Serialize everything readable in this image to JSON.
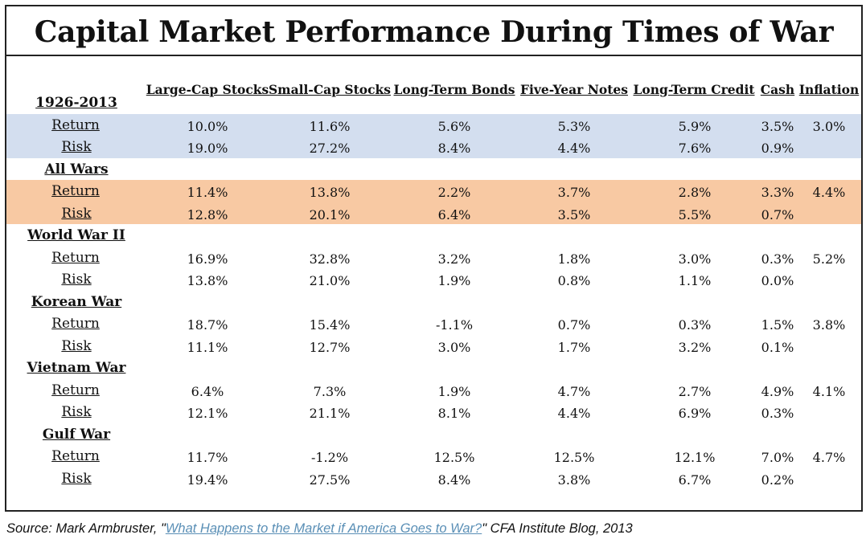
{
  "title": "Capital Market Performance During Times of War",
  "columns": [
    "Large-Cap Stocks",
    "Small-Cap Stocks",
    "Long-Term Bonds",
    "Five-Year Notes",
    "Long-Term Credit",
    "Cash",
    "Inflation"
  ],
  "colors": {
    "band_1926": "#d3deef",
    "band_allwars": "#f8c9a3",
    "link": "#5a8fb6"
  },
  "sections": [
    {
      "name": "1926-2013",
      "highlight": "band_1926",
      "rows": [
        {
          "label": "Return",
          "values": [
            "10.0%",
            "11.6%",
            "5.6%",
            "5.3%",
            "5.9%",
            "3.5%",
            "3.0%"
          ]
        },
        {
          "label": "Risk",
          "values": [
            "19.0%",
            "27.2%",
            "8.4%",
            "4.4%",
            "7.6%",
            "0.9%",
            ""
          ]
        }
      ]
    },
    {
      "name": "All Wars",
      "highlight": "band_allwars",
      "rows": [
        {
          "label": "Return",
          "values": [
            "11.4%",
            "13.8%",
            "2.2%",
            "3.7%",
            "2.8%",
            "3.3%",
            "4.4%"
          ]
        },
        {
          "label": "Risk",
          "values": [
            "12.8%",
            "20.1%",
            "6.4%",
            "3.5%",
            "5.5%",
            "0.7%",
            ""
          ]
        }
      ]
    },
    {
      "name": "World War II",
      "highlight": "",
      "rows": [
        {
          "label": "Return",
          "values": [
            "16.9%",
            "32.8%",
            "3.2%",
            "1.8%",
            "3.0%",
            "0.3%",
            "5.2%"
          ]
        },
        {
          "label": "Risk",
          "values": [
            "13.8%",
            "21.0%",
            "1.9%",
            "0.8%",
            "1.1%",
            "0.0%",
            ""
          ]
        }
      ]
    },
    {
      "name": "Korean War",
      "highlight": "",
      "rows": [
        {
          "label": "Return",
          "values": [
            "18.7%",
            "15.4%",
            "-1.1%",
            "0.7%",
            "0.3%",
            "1.5%",
            "3.8%"
          ]
        },
        {
          "label": "Risk",
          "values": [
            "11.1%",
            "12.7%",
            "3.0%",
            "1.7%",
            "3.2%",
            "0.1%",
            ""
          ]
        }
      ]
    },
    {
      "name": "Vietnam War",
      "highlight": "",
      "rows": [
        {
          "label": "Return",
          "values": [
            "6.4%",
            "7.3%",
            "1.9%",
            "4.7%",
            "2.7%",
            "4.9%",
            "4.1%"
          ]
        },
        {
          "label": "Risk",
          "values": [
            "12.1%",
            "21.1%",
            "8.1%",
            "4.4%",
            "6.9%",
            "0.3%",
            ""
          ]
        }
      ]
    },
    {
      "name": "Gulf War",
      "highlight": "",
      "rows": [
        {
          "label": "Return",
          "values": [
            "11.7%",
            "-1.2%",
            "12.5%",
            "12.5%",
            "12.1%",
            "7.0%",
            "4.7%"
          ]
        },
        {
          "label": "Risk",
          "values": [
            "19.4%",
            "27.5%",
            "8.4%",
            "3.8%",
            "6.7%",
            "0.2%",
            ""
          ]
        }
      ]
    }
  ],
  "source": {
    "prefix": "Source: Mark Armbruster, \"",
    "link_text": "What Happens to the Market if America Goes to War?",
    "suffix": "\" CFA Institute Blog, 2013"
  }
}
